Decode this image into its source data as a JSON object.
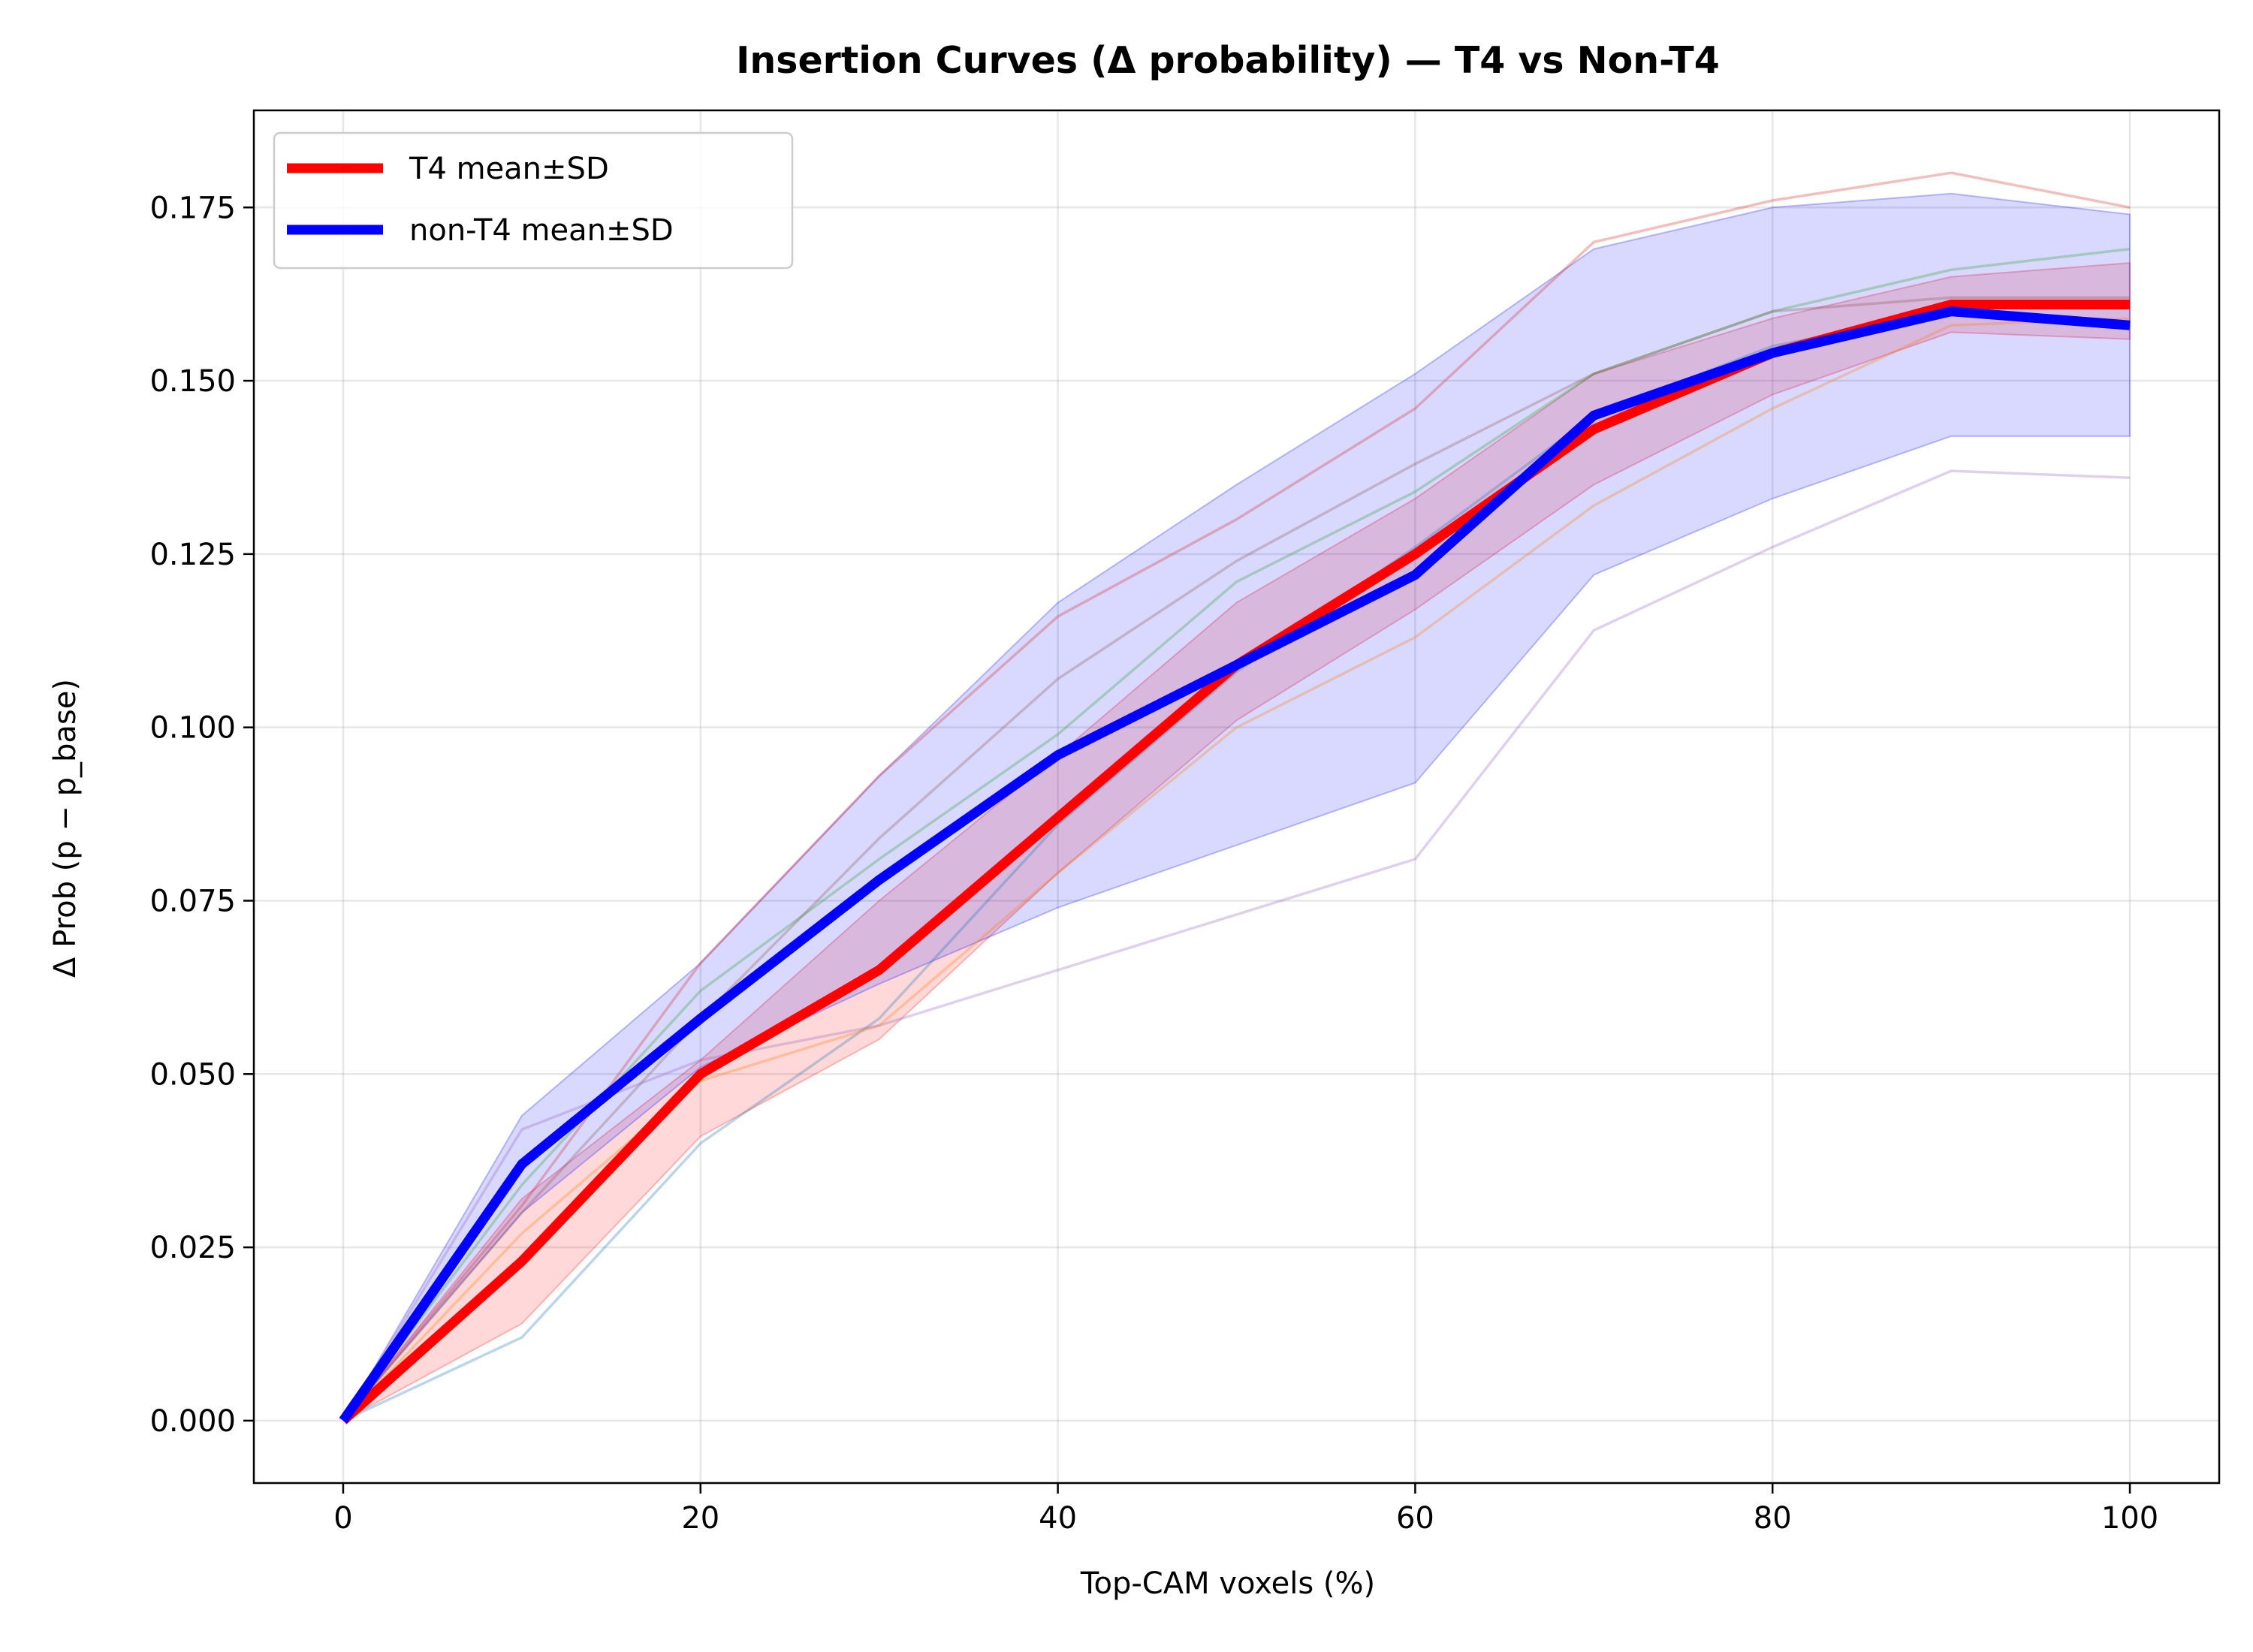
{
  "chart_data": {
    "type": "line",
    "title": "Insertion Curves (Δ probability) — T4 vs Non-T4",
    "xlabel": "Top-CAM voxels (%)",
    "ylabel": "Δ Prob (p − p_base)",
    "xlim": [
      -5,
      105
    ],
    "ylim": [
      -0.009,
      0.189
    ],
    "xticks": [
      0,
      20,
      40,
      60,
      80,
      100
    ],
    "yticks": [
      0.0,
      0.025,
      0.05,
      0.075,
      0.1,
      0.125,
      0.15,
      0.175
    ],
    "ytick_labels": [
      "0.000",
      "0.025",
      "0.050",
      "0.075",
      "0.100",
      "0.125",
      "0.150",
      "0.175"
    ],
    "xtick_labels": [
      "0",
      "20",
      "40",
      "60",
      "80",
      "100"
    ],
    "grid": true,
    "legend_position": "top-left",
    "x": [
      0,
      10,
      20,
      30,
      40,
      50,
      60,
      70,
      80,
      90,
      100
    ],
    "series": [
      {
        "name": "T4 mean±SD",
        "color": "#ff0000",
        "values": [
          0.0,
          0.023,
          0.05,
          0.065,
          0.087,
          0.109,
          0.125,
          0.143,
          0.154,
          0.161,
          0.161
        ],
        "lower": [
          0.0,
          0.014,
          0.041,
          0.055,
          0.079,
          0.101,
          0.117,
          0.135,
          0.148,
          0.157,
          0.156
        ],
        "upper": [
          0.0,
          0.032,
          0.052,
          0.075,
          0.096,
          0.118,
          0.133,
          0.151,
          0.159,
          0.165,
          0.167
        ]
      },
      {
        "name": "non-T4 mean±SD",
        "color": "#0000ff",
        "values": [
          0.0,
          0.037,
          0.058,
          0.078,
          0.096,
          0.109,
          0.122,
          0.145,
          0.154,
          0.16,
          0.158
        ],
        "lower": [
          0.0,
          0.03,
          0.051,
          0.063,
          0.074,
          0.083,
          0.092,
          0.122,
          0.133,
          0.142,
          0.142
        ],
        "upper": [
          0.0,
          0.044,
          0.066,
          0.093,
          0.118,
          0.135,
          0.151,
          0.169,
          0.175,
          0.177,
          0.174
        ]
      }
    ],
    "individual_curves": [
      {
        "color": "#1f77b4",
        "values": [
          0.0,
          0.012,
          0.04,
          0.058,
          0.086,
          0.108,
          0.126,
          0.145,
          0.155,
          0.16,
          0.158
        ]
      },
      {
        "color": "#ff7f0e",
        "values": [
          0.0,
          0.027,
          0.049,
          0.057,
          0.079,
          0.1,
          0.113,
          0.132,
          0.146,
          0.158,
          0.159
        ]
      },
      {
        "color": "#2ca02c",
        "values": [
          0.0,
          0.034,
          0.062,
          0.081,
          0.099,
          0.121,
          0.134,
          0.151,
          0.16,
          0.166,
          0.169
        ]
      },
      {
        "color": "#d62728",
        "values": [
          0.0,
          0.031,
          0.066,
          0.093,
          0.116,
          0.13,
          0.146,
          0.17,
          0.176,
          0.18,
          0.175
        ]
      },
      {
        "color": "#9467bd",
        "values": [
          0.0,
          0.042,
          0.052,
          0.057,
          0.065,
          0.073,
          0.081,
          0.114,
          0.126,
          0.137,
          0.136
        ]
      },
      {
        "color": "#8c564b",
        "values": [
          0.0,
          0.03,
          0.058,
          0.084,
          0.107,
          0.124,
          0.138,
          0.151,
          0.16,
          0.162,
          0.162
        ]
      }
    ]
  }
}
